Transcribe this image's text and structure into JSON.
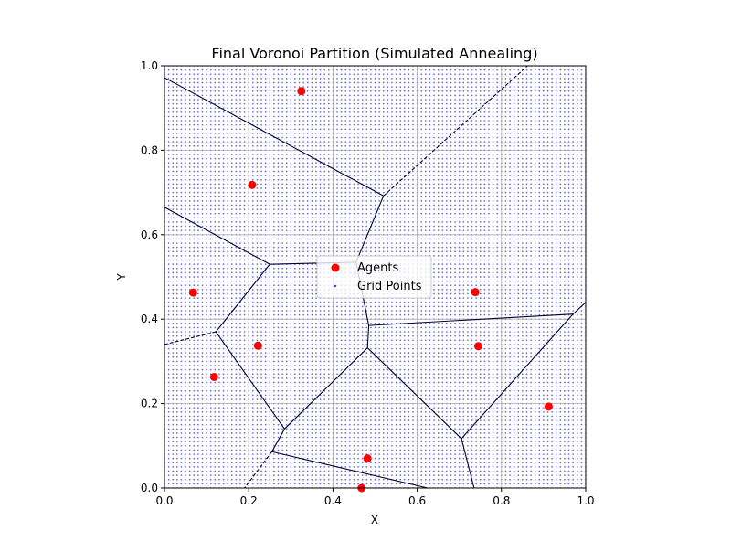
{
  "chart_data": {
    "type": "scatter",
    "title": "Final Voronoi Partition (Simulated Annealing)",
    "xlabel": "X",
    "ylabel": "Y",
    "xlim": [
      0,
      1
    ],
    "ylim": [
      0,
      1
    ],
    "xticks": [
      "0.0",
      "0.2",
      "0.4",
      "0.6",
      "0.8",
      "1.0"
    ],
    "yticks": [
      "0.0",
      "0.2",
      "0.4",
      "0.6",
      "0.8",
      "1.0"
    ],
    "grid": true,
    "legend_position": "center",
    "legend": [
      {
        "label": "Agents",
        "marker": "filled-circle"
      },
      {
        "label": "Grid Points",
        "marker": "dot"
      }
    ],
    "colors": {
      "agents": "#ff0000",
      "grid_points": "#3d3dd6",
      "edges": "#000033",
      "gridlines": "#b0b0b0"
    },
    "grid_points_spacing": 0.01,
    "series": [
      {
        "name": "Agents",
        "points": [
          [
            0.325,
            0.94
          ],
          [
            0.208,
            0.718
          ],
          [
            0.068,
            0.463
          ],
          [
            0.222,
            0.337
          ],
          [
            0.118,
            0.263
          ],
          [
            0.738,
            0.464
          ],
          [
            0.745,
            0.336
          ],
          [
            0.912,
            0.193
          ],
          [
            0.482,
            0.07
          ],
          [
            0.468,
            0.0
          ]
        ]
      }
    ],
    "voronoi_edges": {
      "solid": [
        [
          [
            0.0,
            0.972
          ],
          [
            0.52,
            0.692
          ]
        ],
        [
          [
            0.52,
            0.692
          ],
          [
            0.455,
            0.535
          ]
        ],
        [
          [
            0.0,
            0.665
          ],
          [
            0.25,
            0.53
          ]
        ],
        [
          [
            0.25,
            0.53
          ],
          [
            0.455,
            0.535
          ]
        ],
        [
          [
            0.25,
            0.53
          ],
          [
            0.122,
            0.37
          ]
        ],
        [
          [
            0.455,
            0.535
          ],
          [
            0.485,
            0.385
          ]
        ],
        [
          [
            0.485,
            0.385
          ],
          [
            0.482,
            0.332
          ]
        ],
        [
          [
            0.485,
            0.385
          ],
          [
            0.97,
            0.412
          ]
        ],
        [
          [
            0.97,
            0.412
          ],
          [
            1.0,
            0.44
          ]
        ],
        [
          [
            0.97,
            0.412
          ],
          [
            0.705,
            0.117
          ]
        ],
        [
          [
            0.482,
            0.332
          ],
          [
            0.705,
            0.117
          ]
        ],
        [
          [
            0.482,
            0.332
          ],
          [
            0.285,
            0.14
          ]
        ],
        [
          [
            0.122,
            0.37
          ],
          [
            0.285,
            0.14
          ]
        ],
        [
          [
            0.285,
            0.14
          ],
          [
            0.255,
            0.086
          ]
        ],
        [
          [
            0.255,
            0.086
          ],
          [
            0.625,
            0.0
          ]
        ],
        [
          [
            0.705,
            0.117
          ],
          [
            0.735,
            0.0
          ]
        ]
      ],
      "dashed": [
        [
          [
            0.52,
            0.692
          ],
          [
            0.862,
            1.0
          ]
        ],
        [
          [
            0.122,
            0.37
          ],
          [
            0.0,
            0.34
          ]
        ],
        [
          [
            0.255,
            0.086
          ],
          [
            0.19,
            0.0
          ]
        ]
      ]
    }
  }
}
